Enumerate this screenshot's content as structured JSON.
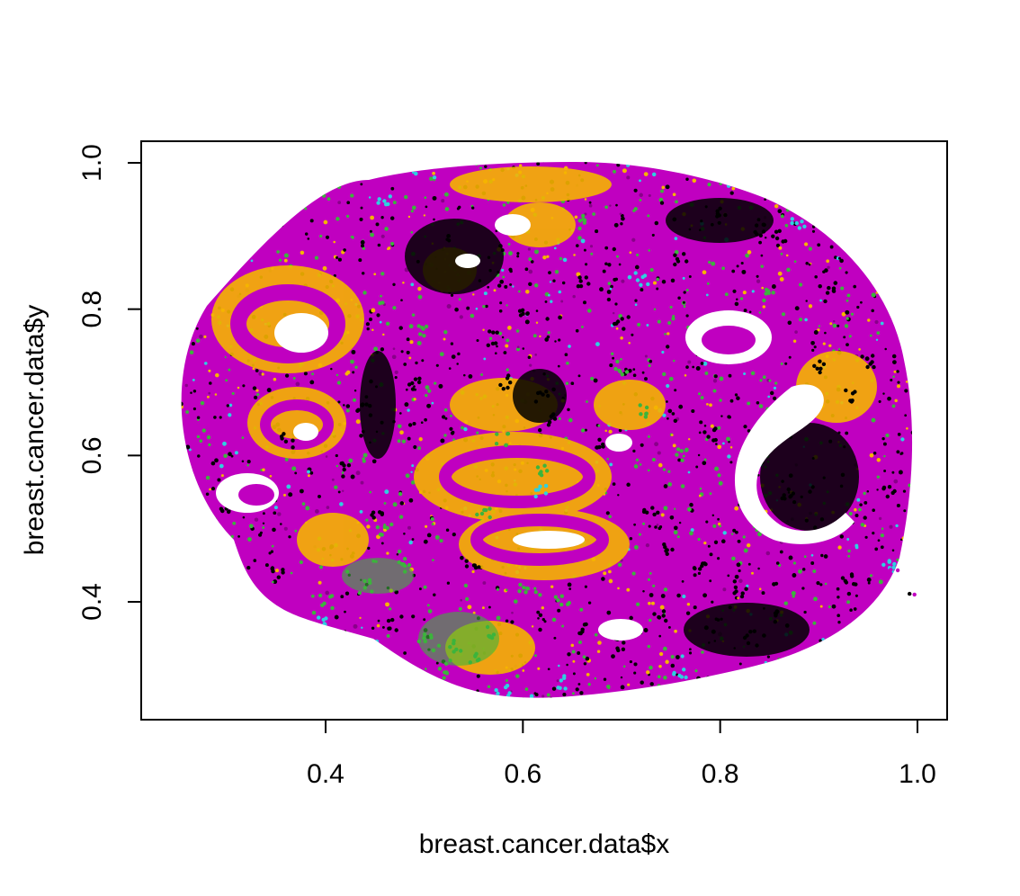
{
  "chart_data": {
    "type": "scatter",
    "title": "",
    "xlabel": "breast.cancer.data$x",
    "ylabel": "breast.cancer.data$y",
    "xlim": [
      0.22,
      1.03
    ],
    "ylim": [
      0.25,
      1.03
    ],
    "x_ticks": [
      {
        "value": 0.4,
        "label": "0.4"
      },
      {
        "value": 0.6,
        "label": "0.6"
      },
      {
        "value": 0.8,
        "label": "0.8"
      },
      {
        "value": 1.0,
        "label": "1.0"
      }
    ],
    "y_ticks": [
      {
        "value": 0.4,
        "label": "0.4"
      },
      {
        "value": 0.6,
        "label": "0.6"
      },
      {
        "value": 0.8,
        "label": "0.8"
      },
      {
        "value": 1.0,
        "label": "1.0"
      }
    ],
    "grid": false,
    "legend": "none",
    "colors": {
      "magenta": "#C000C0",
      "orange": "#F5B400",
      "black": "#000000",
      "green": "#3CB43C",
      "cyan": "#2ED0E0"
    },
    "series": [
      {
        "color": "#000000",
        "points": [
          [
            0.44,
            0.66
          ],
          [
            0.42,
            0.58
          ],
          [
            0.45,
            0.52
          ],
          [
            0.62,
            0.68
          ],
          [
            0.63,
            0.65
          ],
          [
            0.58,
            0.7
          ],
          [
            0.84,
            0.91
          ],
          [
            0.8,
            0.93
          ],
          [
            0.86,
            0.9
          ],
          [
            0.9,
            0.72
          ],
          [
            0.93,
            0.68
          ],
          [
            0.95,
            0.73
          ],
          [
            0.87,
            0.55
          ],
          [
            0.9,
            0.5
          ],
          [
            0.75,
            0.47
          ],
          [
            0.78,
            0.45
          ],
          [
            0.82,
            0.42
          ],
          [
            0.86,
            0.38
          ],
          [
            0.66,
            0.36
          ],
          [
            0.7,
            0.34
          ],
          [
            0.74,
            0.38
          ],
          [
            0.35,
            0.44
          ],
          [
            0.3,
            0.52
          ],
          [
            0.47,
            0.37
          ],
          [
            0.55,
            0.45
          ],
          [
            0.6,
            0.8
          ],
          [
            0.66,
            0.84
          ],
          [
            0.7,
            0.78
          ],
          [
            0.76,
            0.87
          ],
          [
            0.73,
            0.52
          ],
          [
            0.79,
            0.63
          ],
          [
            0.83,
            0.35
          ],
          [
            0.93,
            0.43
          ],
          [
            0.97,
            0.55
          ],
          [
            0.68,
            0.62
          ],
          [
            0.57,
            0.76
          ],
          [
            0.49,
            0.7
          ],
          [
            0.36,
            0.62
          ],
          [
            0.3,
            0.46
          ],
          [
            0.91,
            0.82
          ]
        ]
      },
      {
        "color": "#3CB43C",
        "points": [
          [
            0.53,
            0.34
          ],
          [
            0.55,
            0.32
          ],
          [
            0.5,
            0.35
          ],
          [
            0.57,
            0.36
          ],
          [
            0.52,
            0.31
          ],
          [
            0.46,
            0.5
          ],
          [
            0.48,
            0.45
          ],
          [
            0.58,
            0.62
          ],
          [
            0.62,
            0.58
          ],
          [
            0.7,
            0.72
          ],
          [
            0.44,
            0.42
          ],
          [
            0.4,
            0.4
          ],
          [
            0.6,
            0.42
          ],
          [
            0.76,
            0.6
          ],
          [
            0.85,
            0.82
          ],
          [
            0.66,
            0.92
          ],
          [
            0.56,
            0.52
          ],
          [
            0.64,
            0.4
          ],
          [
            0.72,
            0.66
          ],
          [
            0.5,
            0.77
          ]
        ]
      },
      {
        "color": "#2ED0E0",
        "points": [
          [
            0.52,
            0.28
          ],
          [
            0.58,
            0.28
          ],
          [
            0.64,
            0.29
          ],
          [
            0.76,
            0.3
          ],
          [
            0.47,
            0.32
          ],
          [
            0.45,
            0.34
          ],
          [
            0.4,
            0.37
          ],
          [
            0.97,
            0.45
          ],
          [
            0.62,
            0.55
          ],
          [
            0.88,
            0.92
          ],
          [
            0.25,
            0.6
          ],
          [
            0.46,
            0.95
          ],
          [
            0.72,
            0.84
          ],
          [
            0.84,
            0.62
          ]
        ]
      },
      {
        "color": "#C000C0",
        "points": [
          [
            0.99,
            0.41
          ],
          [
            0.98,
            0.44
          ],
          [
            0.26,
            0.57
          ],
          [
            0.29,
            0.73
          ],
          [
            0.75,
            0.26
          ],
          [
            0.42,
            0.9
          ]
        ]
      }
    ]
  }
}
